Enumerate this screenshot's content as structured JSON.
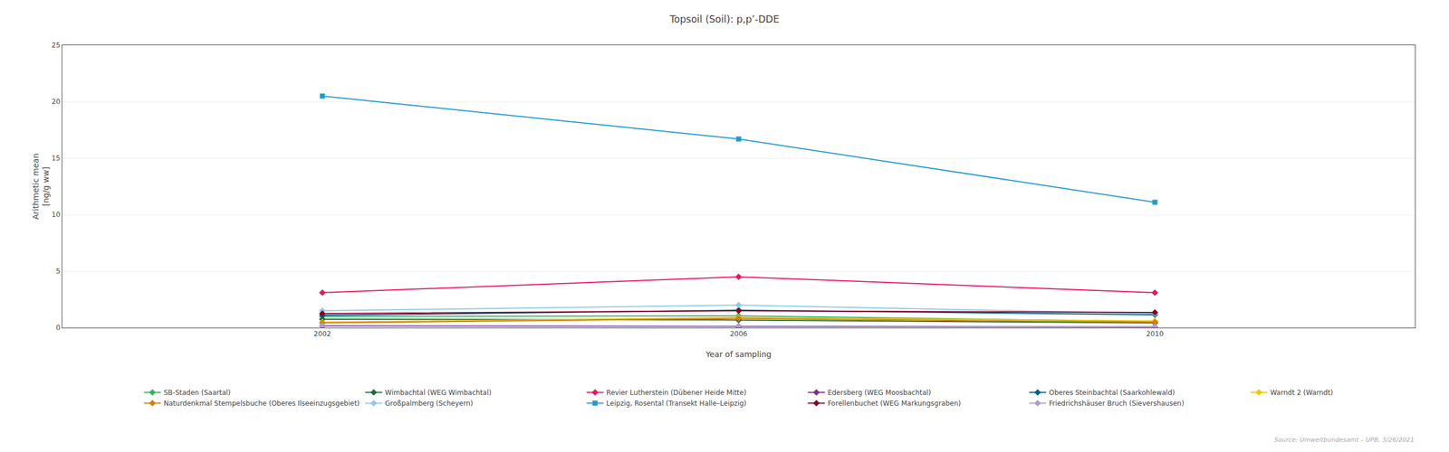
{
  "chart_data": {
    "type": "line",
    "title": "Topsoil (Soil): p,p’-DDE",
    "x_label": "Year of sampling",
    "y_label": "Arithmetic mean\n[ng/g ww]",
    "x": [
      2002,
      2006,
      2010
    ],
    "series": [
      {
        "name": "SB-Staden (Saartal)",
        "color": "#2cb85c",
        "marker": "diamond",
        "values": [
          1.0,
          1.05,
          0.55
        ]
      },
      {
        "name": "Wimbachtal (WEG Wimbachtal)",
        "color": "#1a6e35",
        "marker": "diamond",
        "values": [
          0.75,
          0.68,
          0.42
        ]
      },
      {
        "name": "Revier Lutherstein (Dübener Heide Mitte)",
        "color": "#e8185a",
        "marker": "diamond",
        "values": [
          3.1,
          4.5,
          3.1
        ]
      },
      {
        "name": "Edersberg (WEG Moosbachtal)",
        "color": "#7b2d8b",
        "marker": "diamond",
        "values": [
          0.15,
          0.1,
          0.07
        ]
      },
      {
        "name": "Oberes Steinbachtal (Saarkohlewald)",
        "color": "#005f87",
        "marker": "diamond",
        "values": [
          1.1,
          1.55,
          1.15
        ]
      },
      {
        "name": "Warndt 2 (Warndt)",
        "color": "#f0c800",
        "marker": "diamond",
        "values": [
          0.5,
          0.9,
          0.6
        ]
      },
      {
        "name": "Naturdenkmal Stempelsbuche (Oberes Ilseeinzugsgebiet)",
        "color": "#d97c00",
        "marker": "diamond",
        "values": [
          0.42,
          0.82,
          0.48
        ]
      },
      {
        "name": "Großpalmberg (Scheyern)",
        "color": "#87ceeb",
        "marker": "diamond",
        "values": [
          1.5,
          2.0,
          1.25
        ]
      },
      {
        "name": "Leipzig, Rosental (Transekt Halle–Leipzig)",
        "color": "#1e9bd7",
        "marker": "square",
        "values": [
          20.5,
          16.7,
          11.1
        ]
      },
      {
        "name": "Forellenbuchet (WEG Markungsgraben)",
        "color": "#8b0028",
        "marker": "diamond",
        "values": [
          1.25,
          1.5,
          1.35
        ]
      },
      {
        "name": "Friedrichshäuser Bruch (Sievershausen)",
        "color": "#b09ad0",
        "marker": "diamond",
        "values": [
          0.2,
          0.15,
          0.1
        ]
      }
    ],
    "xlim": [
      1999.5,
      2012.5
    ],
    "xticks": [
      2002,
      2006,
      2010
    ],
    "ylim": [
      0,
      25
    ],
    "yticks": [
      0,
      5,
      10,
      15,
      20,
      25
    ],
    "grid": "y",
    "legend": "bottom",
    "annotations": [
      "Source: Umweltbundesamt – UPB, 3/26/2021"
    ]
  }
}
